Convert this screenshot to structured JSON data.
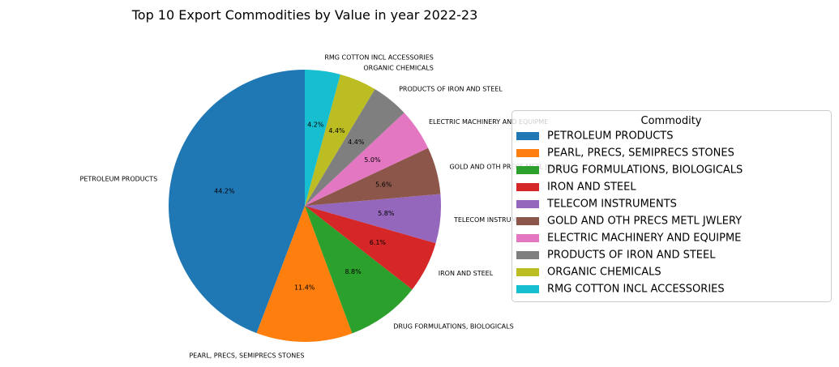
{
  "chart_data": {
    "type": "pie",
    "title": "Top 10 Export Commodities by Value in year 2022-23",
    "categories": [
      "PETROLEUM PRODUCTS",
      "PEARL, PRECS, SEMIPRECS STONES",
      "DRUG FORMULATIONS, BIOLOGICALS",
      "IRON AND STEEL",
      "TELECOM INSTRUMENTS",
      "GOLD AND OTH PRECS METL JWLERY",
      "ELECTRIC MACHINERY AND EQUIPME",
      "PRODUCTS OF IRON AND STEEL",
      "ORGANIC CHEMICALS",
      "RMG COTTON INCL ACCESSORIES"
    ],
    "values": [
      44.2,
      11.4,
      8.8,
      6.1,
      5.8,
      5.6,
      5.0,
      4.4,
      4.4,
      4.2
    ],
    "pct_labels": [
      "44.2%",
      "11.4%",
      "8.8%",
      "6.1%",
      "5.8%",
      "5.6%",
      "5.0%",
      "4.4%",
      "4.4%",
      "4.2%"
    ],
    "colors": [
      "#1f77b4",
      "#ff7f0e",
      "#2ca02c",
      "#d62728",
      "#9467bd",
      "#8c564b",
      "#e377c2",
      "#7f7f7f",
      "#bcbd22",
      "#17becf"
    ],
    "start_angle_deg": 90,
    "direction": "counterclockwise",
    "legend": {
      "title": "Commodity",
      "placement": "right"
    }
  }
}
